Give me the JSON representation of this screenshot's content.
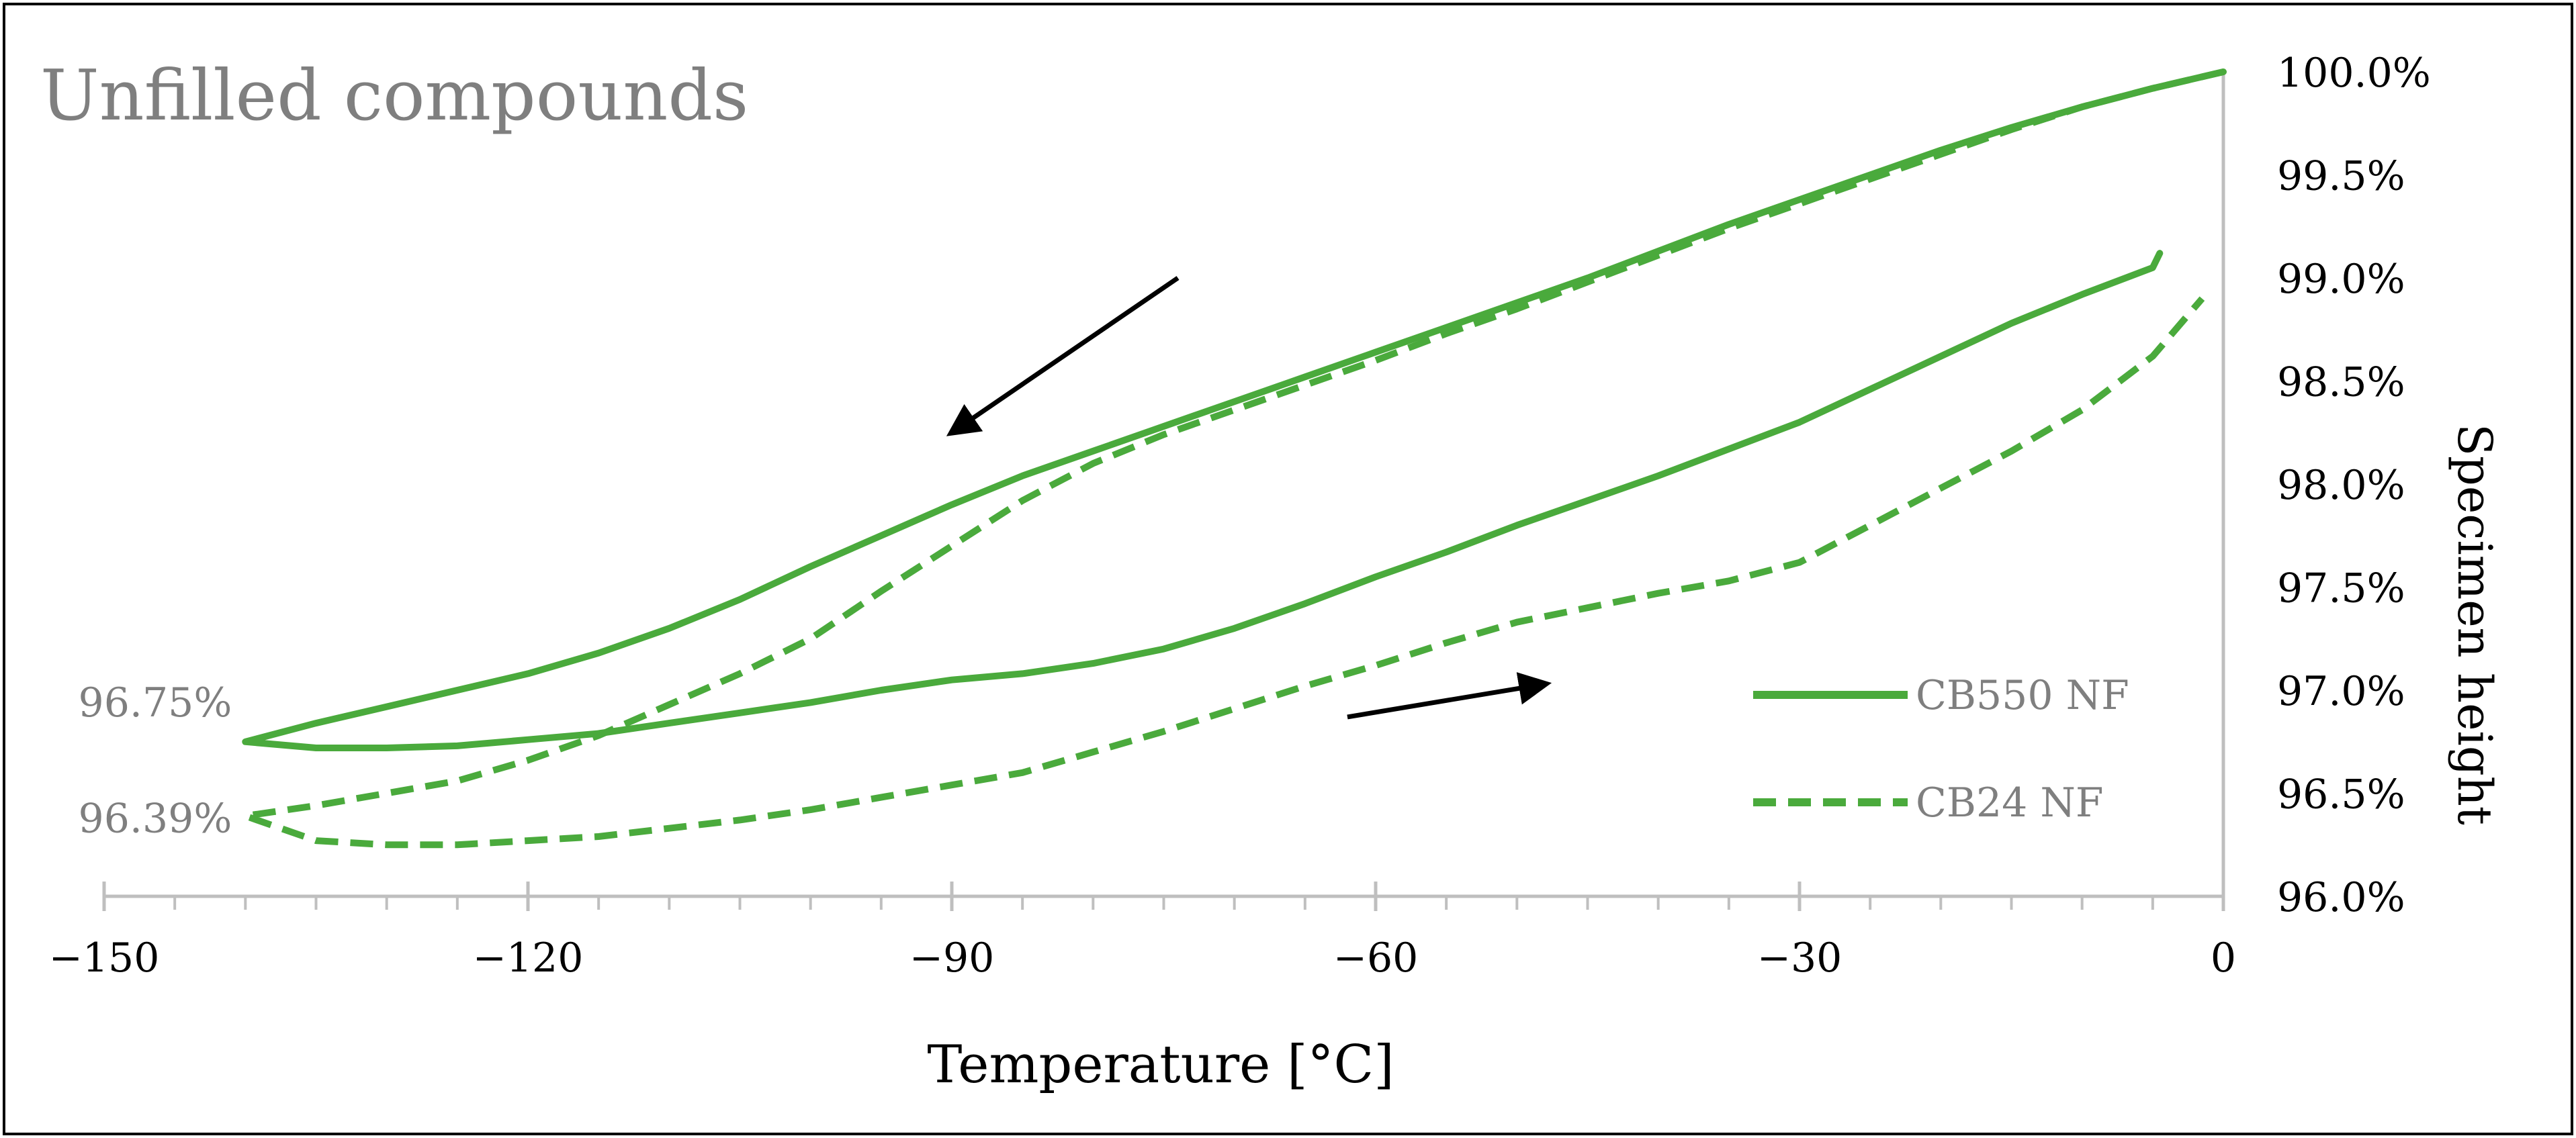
{
  "chart_data": {
    "type": "line",
    "title": "Unfilled compounds",
    "xlabel": "Temperature [°C]",
    "ylabel": "Specimen height",
    "xlim": [
      -150,
      0
    ],
    "ylim": [
      96.0,
      100.0
    ],
    "x_ticks": [
      -150,
      -120,
      -90,
      -60,
      -30,
      0
    ],
    "x_tick_labels": [
      "−150",
      "−120",
      "−90",
      "−60",
      "−30",
      "0"
    ],
    "y_ticks": [
      96.0,
      96.5,
      97.0,
      97.5,
      98.0,
      98.5,
      99.0,
      99.5,
      100.0
    ],
    "y_tick_labels": [
      "96.0%",
      "96.5%",
      "97.0%",
      "97.5%",
      "98.0%",
      "98.5%",
      "99.0%",
      "99.5%",
      "100.0%"
    ],
    "y_axis_position": "right",
    "grid": false,
    "legend_position": "bottom-right",
    "series": [
      {
        "name": "CB550 NF",
        "style": "solid",
        "color": "#4aaa3c",
        "x": [
          0,
          -5,
          -10,
          -15,
          -20,
          -25,
          -30,
          -35,
          -40,
          -45,
          -50,
          -55,
          -60,
          -65,
          -70,
          -75,
          -80,
          -85,
          -90,
          -95,
          -100,
          -105,
          -110,
          -115,
          -120,
          -125,
          -130,
          -135,
          -140,
          -135,
          -130,
          -125,
          -120,
          -115,
          -110,
          -105,
          -100,
          -95,
          -90,
          -85,
          -80,
          -75,
          -70,
          -65,
          -60,
          -55,
          -50,
          -45,
          -40,
          -35,
          -30,
          -25,
          -20,
          -15,
          -10,
          -5,
          -4.5
        ],
        "y": [
          100.0,
          99.92,
          99.83,
          99.73,
          99.62,
          99.5,
          99.38,
          99.26,
          99.13,
          99.0,
          98.88,
          98.76,
          98.64,
          98.52,
          98.4,
          98.28,
          98.16,
          98.04,
          97.9,
          97.75,
          97.6,
          97.44,
          97.3,
          97.18,
          97.08,
          97.0,
          96.92,
          96.84,
          96.75,
          96.72,
          96.72,
          96.73,
          96.76,
          96.79,
          96.84,
          96.89,
          96.94,
          97.0,
          97.05,
          97.08,
          97.13,
          97.2,
          97.3,
          97.42,
          97.55,
          97.67,
          97.8,
          97.92,
          98.04,
          98.17,
          98.3,
          98.46,
          98.62,
          98.78,
          98.92,
          99.05,
          99.12
        ]
      },
      {
        "name": "CB24 NF",
        "style": "dashed",
        "color": "#4aaa3c",
        "x": [
          0,
          -5,
          -10,
          -15,
          -20,
          -25,
          -30,
          -35,
          -40,
          -45,
          -50,
          -55,
          -60,
          -65,
          -70,
          -75,
          -80,
          -85,
          -90,
          -95,
          -100,
          -105,
          -110,
          -115,
          -120,
          -125,
          -130,
          -135,
          -140,
          -135,
          -130,
          -125,
          -120,
          -115,
          -110,
          -105,
          -100,
          -95,
          -90,
          -85,
          -80,
          -75,
          -70,
          -65,
          -60,
          -55,
          -50,
          -45,
          -40,
          -35,
          -30,
          -25,
          -20,
          -15,
          -10,
          -5,
          -1.5
        ],
        "y": [
          100.0,
          99.92,
          99.83,
          99.72,
          99.6,
          99.48,
          99.36,
          99.24,
          99.11,
          98.98,
          98.85,
          98.73,
          98.6,
          98.48,
          98.36,
          98.24,
          98.1,
          97.92,
          97.7,
          97.48,
          97.25,
          97.08,
          96.93,
          96.78,
          96.66,
          96.56,
          96.5,
          96.44,
          96.39,
          96.27,
          96.25,
          96.25,
          96.27,
          96.29,
          96.33,
          96.37,
          96.42,
          96.48,
          96.54,
          96.6,
          96.7,
          96.8,
          96.91,
          97.02,
          97.12,
          97.23,
          97.33,
          97.4,
          97.47,
          97.53,
          97.62,
          97.8,
          97.98,
          98.16,
          98.36,
          98.62,
          98.9
        ]
      }
    ],
    "annotations": [
      {
        "text": "96.75%",
        "x": -140,
        "y": 96.75
      },
      {
        "text": "96.39%",
        "x": -140,
        "y": 96.39
      }
    ],
    "arrows": [
      {
        "from": [
          -74,
          99.0
        ],
        "to": [
          -90,
          98.25
        ],
        "meaning": "cooling"
      },
      {
        "from": [
          -62,
          96.87
        ],
        "to": [
          -48,
          97.03
        ],
        "meaning": "heating"
      }
    ]
  }
}
